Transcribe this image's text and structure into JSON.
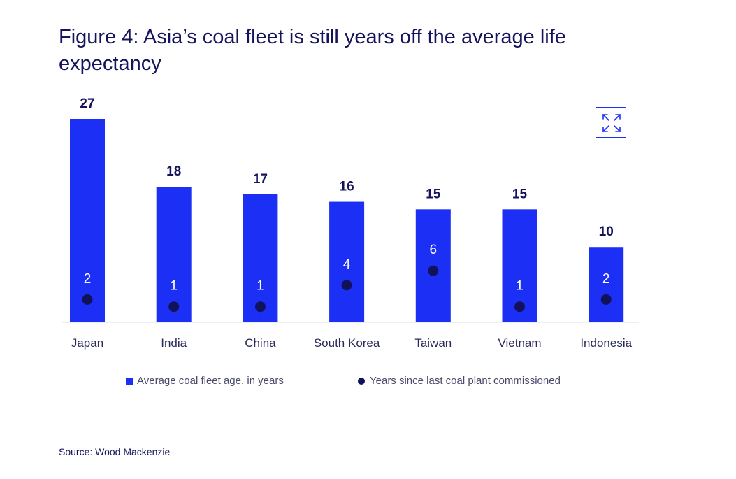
{
  "title": "Figure 4: Asia’s coal fleet is still years off the average life expectancy",
  "source": "Source: Wood Mackenzie",
  "colors": {
    "bar": "#1b2ff5",
    "dot": "#12125a",
    "text": "#14135c"
  },
  "expand_icon": "expand-icon",
  "chart_data": {
    "type": "bar",
    "categories": [
      "Japan",
      "India",
      "China",
      "South Korea",
      "Taiwan",
      "Vietnam",
      "Indonesia"
    ],
    "series": [
      {
        "name": "Average coal fleet age, in years",
        "kind": "bar",
        "values": [
          27,
          18,
          17,
          16,
          15,
          15,
          10
        ]
      },
      {
        "name": "Years since last coal plant commissioned",
        "kind": "dot",
        "values": [
          2,
          1,
          1,
          4,
          6,
          1,
          2
        ]
      }
    ],
    "ylim": [
      0,
      27
    ],
    "legend": "bottom"
  }
}
